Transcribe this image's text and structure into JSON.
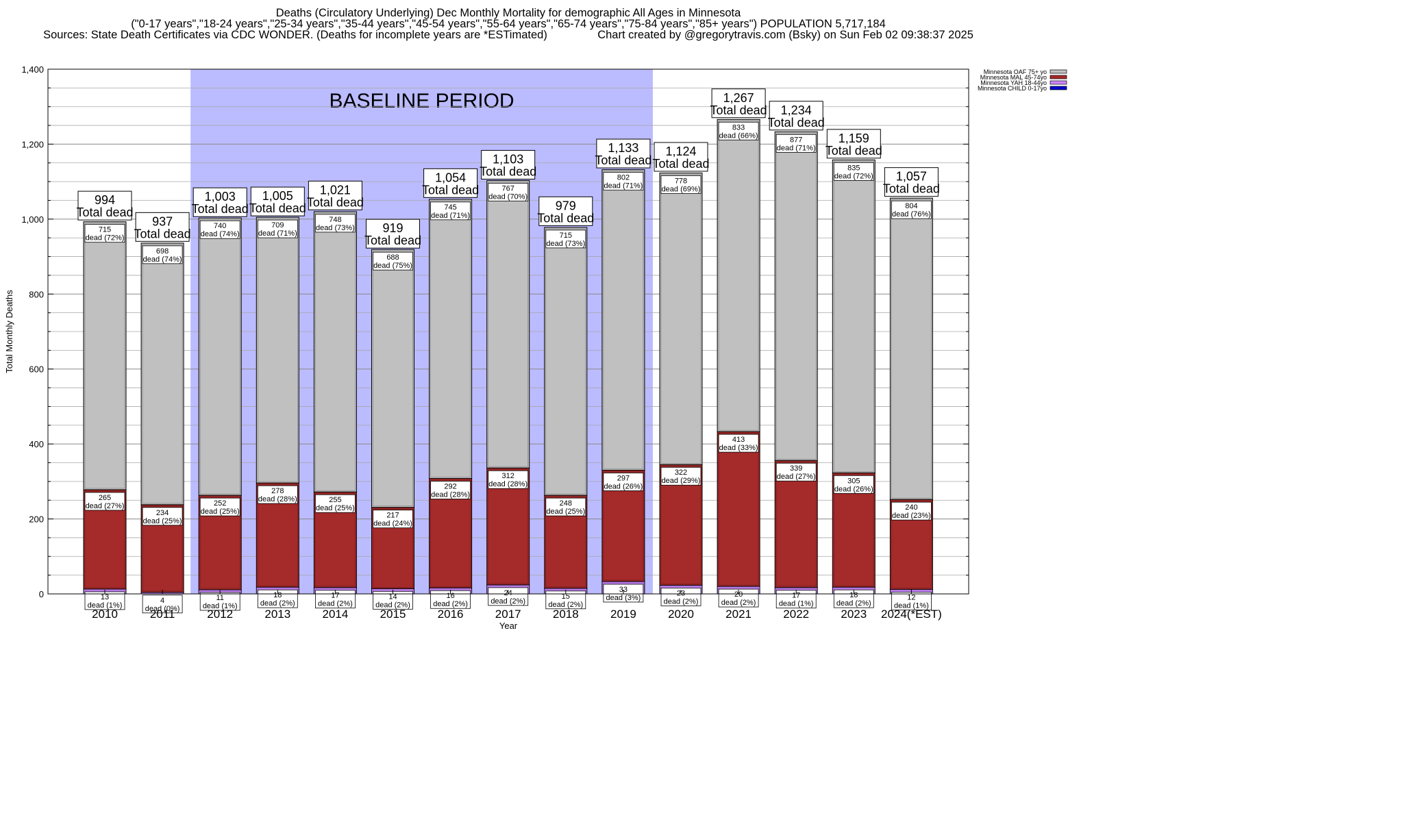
{
  "chart_data": {
    "type": "bar",
    "stacked": true,
    "title": "Deaths (Circulatory Underlying) Dec Monthly Mortality for demographic All Ages in Minnesota",
    "subtitle": "(\"0-17 years\",\"18-24 years\",\"25-34 years\",\"35-44 years\",\"45-54 years\",\"55-64 years\",\"65-74 years\",\"75-84 years\",\"85+ years\") POPULATION 5,717,184",
    "sources": "Sources: State Death Certificates via CDC WONDER. (Deaths for incomplete years are *ESTimated)",
    "credit": "Chart created by @gregorytravis.com (Bsky) on Sun Feb 02 09:38:37 2025",
    "xlabel": "Year",
    "ylabel": "Total Monthly Deaths",
    "ylim": [
      0,
      1400
    ],
    "yticks": [
      0,
      200,
      400,
      600,
      800,
      1000,
      1200,
      1400
    ],
    "ytick_labels": [
      "0",
      "200",
      "400",
      "600",
      "800",
      "1,000",
      "1,200",
      "1,400"
    ],
    "minor_ytick_step": 50,
    "grid": true,
    "legend_position": "top-right (outside plot)",
    "categories": [
      "2010",
      "2011",
      "2012",
      "2013",
      "2014",
      "2015",
      "2016",
      "2017",
      "2018",
      "2019",
      "2020",
      "2021",
      "2022",
      "2023",
      "2024(*EST)"
    ],
    "baseline_band": {
      "label": "BASELINE PERIOD",
      "from": "2012",
      "to": "2019",
      "color": "#bbbbff"
    },
    "series": [
      {
        "name": "Minnesota CHILD 0-17yo",
        "color": "#0000cc",
        "values": [
          0,
          0,
          0,
          0,
          0,
          0,
          0,
          0,
          0,
          0,
          0,
          0,
          0,
          0,
          0
        ]
      },
      {
        "name": "Minnesota YAH 18-44yo",
        "color": "#cc88ff",
        "values": [
          13,
          4,
          11,
          18,
          17,
          14,
          16,
          24,
          15,
          33,
          23,
          20,
          17,
          18,
          12
        ],
        "pct_labels": [
          "1%",
          "0%",
          "1%",
          "2%",
          "2%",
          "2%",
          "2%",
          "2%",
          "2%",
          "3%",
          "2%",
          "2%",
          "1%",
          "2%",
          "1%"
        ]
      },
      {
        "name": "Minnesota MAL 45-74yo",
        "color": "#a52a2a",
        "values": [
          265,
          234,
          252,
          278,
          255,
          217,
          292,
          312,
          248,
          297,
          322,
          413,
          339,
          305,
          240
        ],
        "pct_labels": [
          "27%",
          "25%",
          "25%",
          "28%",
          "25%",
          "24%",
          "28%",
          "28%",
          "25%",
          "26%",
          "29%",
          "33%",
          "27%",
          "26%",
          "23%"
        ]
      },
      {
        "name": "Minnesota OAF 75+ yo",
        "color": "#c0c0c0",
        "values": [
          715,
          698,
          740,
          709,
          748,
          688,
          745,
          767,
          715,
          802,
          778,
          833,
          877,
          835,
          804
        ],
        "pct_labels": [
          "72%",
          "74%",
          "74%",
          "71%",
          "73%",
          "75%",
          "71%",
          "70%",
          "73%",
          "71%",
          "69%",
          "66%",
          "71%",
          "72%",
          "76%"
        ]
      }
    ],
    "totals": [
      994,
      937,
      1003,
      1005,
      1021,
      919,
      1054,
      1103,
      979,
      1133,
      1124,
      1267,
      1234,
      1159,
      1057
    ],
    "total_labels": [
      "994",
      "937",
      "1,003",
      "1,005",
      "1,021",
      "919",
      "1,054",
      "1,103",
      "979",
      "1,133",
      "1,124",
      "1,267",
      "1,234",
      "1,159",
      "1,057"
    ],
    "total_suffix": "Total dead",
    "segment_suffix": "dead"
  }
}
